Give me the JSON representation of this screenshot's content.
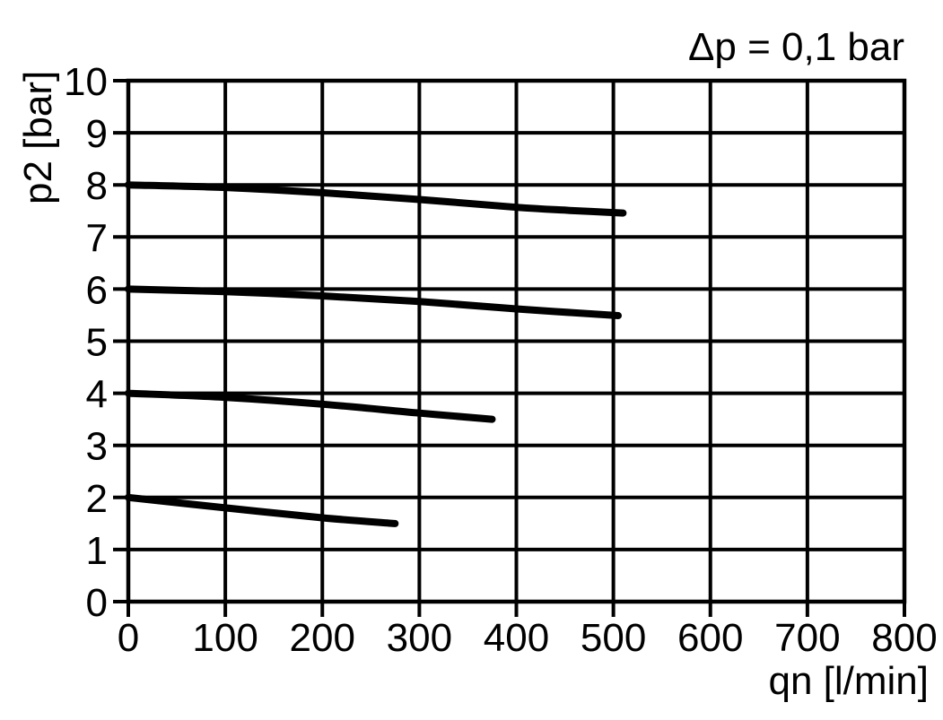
{
  "chart_data": {
    "type": "line",
    "title": "",
    "annotation": "Δp = 0,1 bar",
    "xlabel": "qn [l/min]",
    "ylabel": "p2 [bar]",
    "xlim": [
      0,
      800
    ],
    "ylim": [
      0,
      10
    ],
    "x_ticks": [
      0,
      100,
      200,
      300,
      400,
      500,
      600,
      700,
      800
    ],
    "y_ticks": [
      0,
      1,
      2,
      3,
      4,
      5,
      6,
      7,
      8,
      9,
      10
    ],
    "grid": true,
    "legend_position": "none",
    "colors": {
      "line": "#000000",
      "grid": "#000000",
      "background": "#ffffff"
    },
    "series": [
      {
        "id": "curve-start-8-bar",
        "start_p2_bar": 8,
        "points": [
          [
            0,
            8.0
          ],
          [
            100,
            7.95
          ],
          [
            200,
            7.85
          ],
          [
            300,
            7.72
          ],
          [
            400,
            7.57
          ],
          [
            455,
            7.51
          ],
          [
            510,
            7.46
          ]
        ]
      },
      {
        "id": "curve-start-6-bar",
        "start_p2_bar": 6,
        "points": [
          [
            0,
            6.0
          ],
          [
            100,
            5.95
          ],
          [
            200,
            5.87
          ],
          [
            300,
            5.76
          ],
          [
            400,
            5.62
          ],
          [
            505,
            5.49
          ]
        ]
      },
      {
        "id": "curve-start-4-bar",
        "start_p2_bar": 4,
        "points": [
          [
            0,
            4.0
          ],
          [
            100,
            3.92
          ],
          [
            200,
            3.79
          ],
          [
            300,
            3.62
          ],
          [
            375,
            3.5
          ]
        ]
      },
      {
        "id": "curve-start-2-bar",
        "start_p2_bar": 2,
        "points": [
          [
            0,
            2.0
          ],
          [
            100,
            1.8
          ],
          [
            200,
            1.61
          ],
          [
            275,
            1.5
          ]
        ]
      }
    ]
  }
}
